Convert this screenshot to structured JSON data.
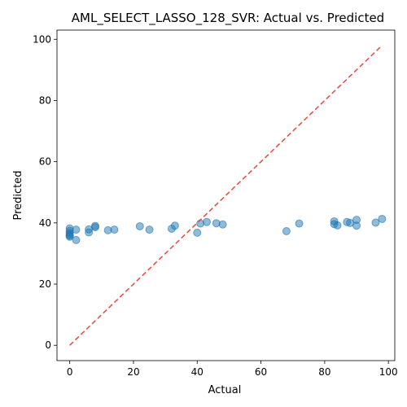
{
  "chart_data": {
    "type": "scatter",
    "title": "AML_SELECT_LASSO_128_SVR: Actual vs. Predicted",
    "xlabel": "Actual",
    "ylabel": "Predicted",
    "xlim": [
      -4,
      102
    ],
    "ylim": [
      -5,
      103
    ],
    "xticks": [
      0,
      20,
      40,
      60,
      80,
      100
    ],
    "yticks": [
      0,
      20,
      40,
      60,
      80,
      100
    ],
    "grid": false,
    "reference_line": {
      "from": [
        0,
        0
      ],
      "to": [
        98,
        98
      ],
      "style": "dashed",
      "color": "#e8504a"
    },
    "marker_color": "#1f77b4",
    "points": [
      {
        "x": 0,
        "y": 38.2
      },
      {
        "x": 0,
        "y": 37.4
      },
      {
        "x": 0,
        "y": 36.7
      },
      {
        "x": 0,
        "y": 36.2
      },
      {
        "x": 0,
        "y": 35.8
      },
      {
        "x": 0,
        "y": 35.5
      },
      {
        "x": 2,
        "y": 37.8
      },
      {
        "x": 2,
        "y": 34.4
      },
      {
        "x": 6,
        "y": 37.9
      },
      {
        "x": 6,
        "y": 36.9
      },
      {
        "x": 8,
        "y": 39.0
      },
      {
        "x": 8,
        "y": 38.6
      },
      {
        "x": 12,
        "y": 37.6
      },
      {
        "x": 14,
        "y": 37.8
      },
      {
        "x": 22,
        "y": 38.9
      },
      {
        "x": 25,
        "y": 37.8
      },
      {
        "x": 32,
        "y": 38.1
      },
      {
        "x": 33,
        "y": 39.1
      },
      {
        "x": 40,
        "y": 36.8
      },
      {
        "x": 41,
        "y": 39.8
      },
      {
        "x": 43,
        "y": 40.3
      },
      {
        "x": 46,
        "y": 39.9
      },
      {
        "x": 48,
        "y": 39.5
      },
      {
        "x": 68,
        "y": 37.3
      },
      {
        "x": 72,
        "y": 39.8
      },
      {
        "x": 83,
        "y": 40.5
      },
      {
        "x": 83,
        "y": 39.6
      },
      {
        "x": 84,
        "y": 39.2
      },
      {
        "x": 87,
        "y": 40.3
      },
      {
        "x": 88,
        "y": 40.0
      },
      {
        "x": 90,
        "y": 41.0
      },
      {
        "x": 90,
        "y": 39.1
      },
      {
        "x": 96,
        "y": 40.1
      },
      {
        "x": 98,
        "y": 41.3
      }
    ]
  }
}
